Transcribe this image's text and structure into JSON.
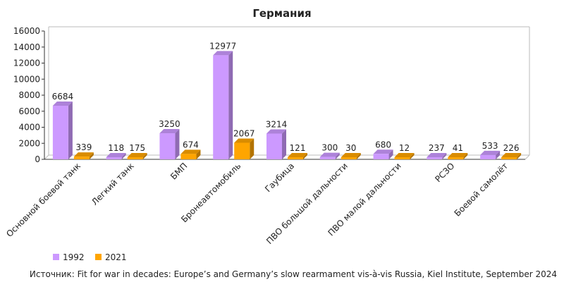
{
  "chart_data": {
    "type": "bar",
    "title": "Германия",
    "categories": [
      "Основной боевой танк",
      "Легкий танк",
      "БМП",
      "Бронеавтомобиль",
      "Гаубица",
      "ПВО большой дальности",
      "ПВО малой дальности",
      "РСЗО",
      "Боевой самолёт"
    ],
    "series": [
      {
        "name": "1992",
        "color": "#cc99ff",
        "values": [
          6684,
          118,
          3250,
          12977,
          3214,
          300,
          680,
          237,
          533
        ]
      },
      {
        "name": "2021",
        "color": "#ffa500",
        "values": [
          339,
          175,
          674,
          2067,
          121,
          30,
          12,
          41,
          226
        ]
      }
    ],
    "ylim": [
      0,
      16000
    ],
    "yticks": [
      "0",
      "2000",
      "4000",
      "6000",
      "8000",
      "10000",
      "12000",
      "14000",
      "16000"
    ],
    "grid": false,
    "legend_position": "bottom-left",
    "xlabel": "",
    "ylabel": ""
  },
  "source": "Источник: Fit for war in decades: Europe’s and Germany’s slow rearmament vis-à-vis Russia, Kiel Institute, September 2024"
}
